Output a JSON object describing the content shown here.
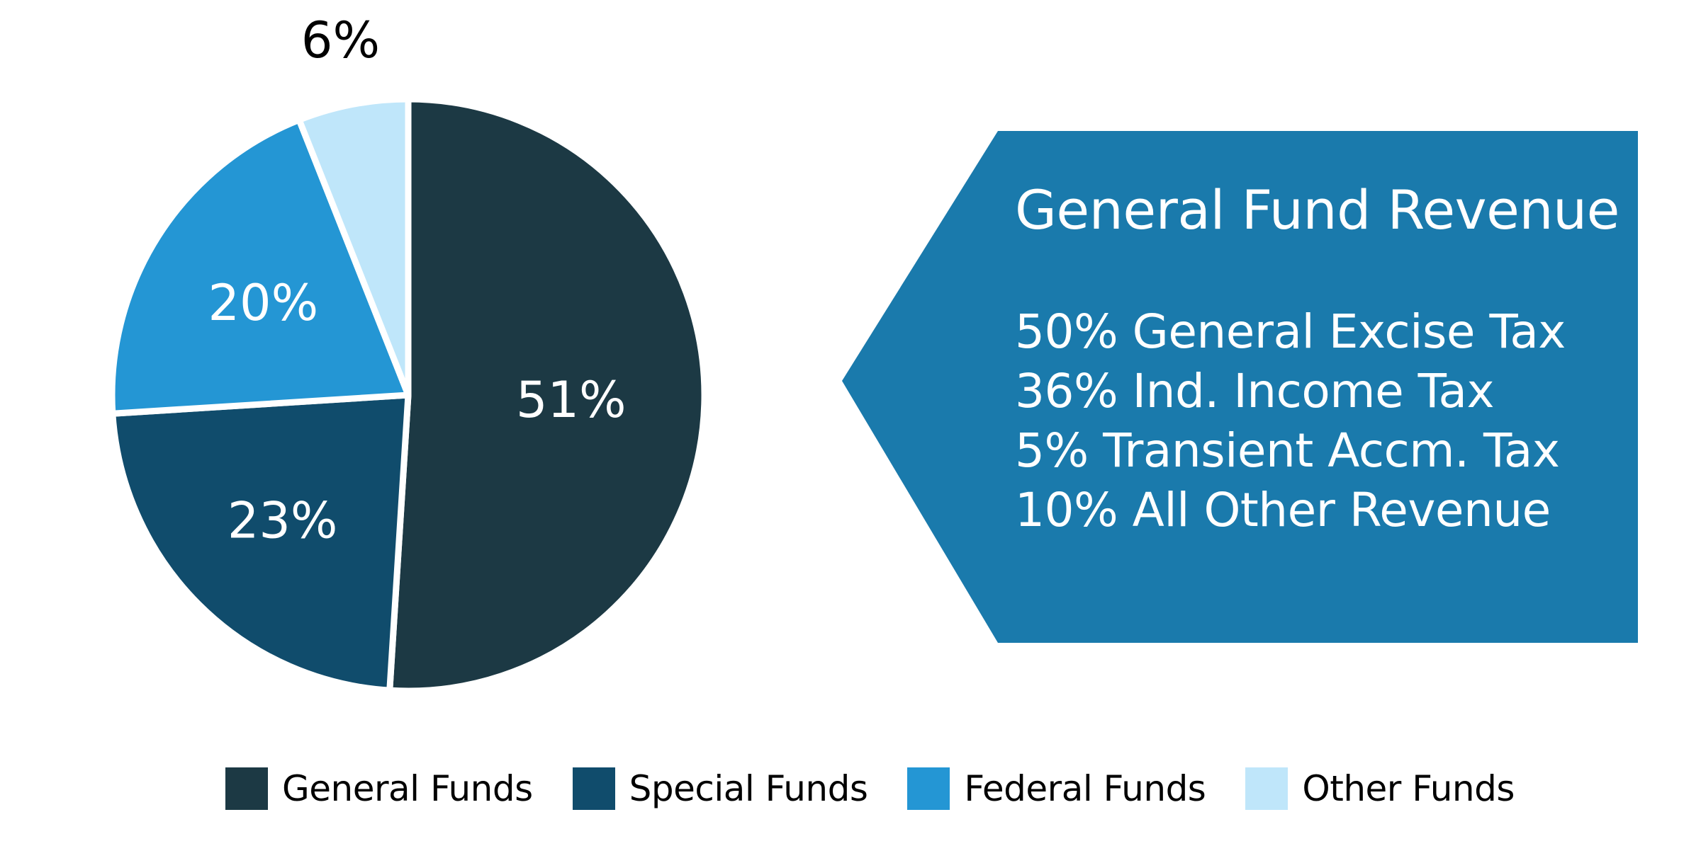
{
  "chart_data": {
    "type": "pie",
    "title": "",
    "categories": [
      "General Funds",
      "Special Funds",
      "Federal Funds",
      "Other Funds"
    ],
    "values": [
      51,
      23,
      20,
      6
    ],
    "value_labels": [
      "51%",
      "23%",
      "20%",
      "6%"
    ],
    "colors": [
      "#1c3944",
      "#104c6c",
      "#2496d4",
      "#bfe6fa"
    ],
    "legend_position": "bottom"
  },
  "callout": {
    "title": "General Fund Revenue",
    "color": "#1a7aac",
    "lines": [
      "50% General Excise Tax",
      "36% Ind. Income Tax",
      "5% Transient Accm. Tax",
      "10% All Other Revenue"
    ]
  },
  "legend": {
    "items": [
      {
        "label": "General Funds",
        "color": "#1c3944"
      },
      {
        "label": "Special Funds",
        "color": "#104c6c"
      },
      {
        "label": "Federal Funds",
        "color": "#2496d4"
      },
      {
        "label": "Other Funds",
        "color": "#bfe6fa"
      }
    ]
  }
}
